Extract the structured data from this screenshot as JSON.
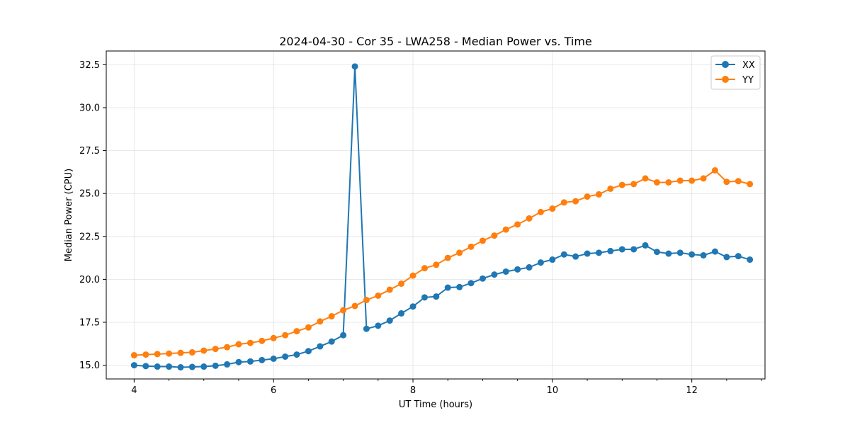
{
  "chart_data": {
    "type": "line",
    "title": "2024-04-30 - Cor 35 - LWA258 - Median Power vs. Time",
    "xlabel": "UT Time (hours)",
    "ylabel": "Median Power (CPU)",
    "xlim": [
      3.6,
      13.05
    ],
    "ylim": [
      14.2,
      33.3
    ],
    "xticks": [
      4,
      6,
      8,
      10,
      12
    ],
    "xtick_labels": [
      "4",
      "6",
      "8",
      "10",
      "12"
    ],
    "xminor_step": 0.5,
    "yticks": [
      15.0,
      17.5,
      20.0,
      22.5,
      25.0,
      27.5,
      30.0,
      32.5
    ],
    "ytick_labels": [
      "15.0",
      "17.5",
      "20.0",
      "22.5",
      "25.0",
      "27.5",
      "30.0",
      "32.5"
    ],
    "grid": true,
    "legend_position": "top-right",
    "x": [
      4.0,
      4.167,
      4.333,
      4.5,
      4.667,
      4.833,
      5.0,
      5.167,
      5.333,
      5.5,
      5.667,
      5.833,
      6.0,
      6.167,
      6.333,
      6.5,
      6.667,
      6.833,
      7.0,
      7.167,
      7.333,
      7.5,
      7.667,
      7.833,
      8.0,
      8.167,
      8.333,
      8.5,
      8.667,
      8.833,
      9.0,
      9.167,
      9.333,
      9.5,
      9.667,
      9.833,
      10.0,
      10.167,
      10.333,
      10.5,
      10.667,
      10.833,
      11.0,
      11.167,
      11.333,
      11.5,
      11.667,
      11.833,
      12.0,
      12.167,
      12.333,
      12.5,
      12.667,
      12.833
    ],
    "series": [
      {
        "name": "XX",
        "color": "#1f77b4",
        "values": [
          15.0,
          14.95,
          14.92,
          14.92,
          14.88,
          14.9,
          14.92,
          14.97,
          15.05,
          15.18,
          15.22,
          15.3,
          15.38,
          15.5,
          15.62,
          15.82,
          16.1,
          16.38,
          16.75,
          32.4,
          17.12,
          17.3,
          17.6,
          18.02,
          18.42,
          18.95,
          19.0,
          19.52,
          19.55,
          19.78,
          20.05,
          20.28,
          20.45,
          20.58,
          20.7,
          20.98,
          21.15,
          21.45,
          21.33,
          21.5,
          21.55,
          21.65,
          21.75,
          21.75,
          21.98,
          21.6,
          21.5,
          21.55,
          21.45,
          21.4,
          21.62,
          21.3,
          21.35,
          21.15
        ]
      },
      {
        "name": "YY",
        "color": "#ff7f0e",
        "values": [
          15.58,
          15.62,
          15.65,
          15.68,
          15.72,
          15.75,
          15.85,
          15.95,
          16.05,
          16.22,
          16.3,
          16.42,
          16.58,
          16.75,
          16.98,
          17.2,
          17.55,
          17.85,
          18.2,
          18.45,
          18.8,
          19.05,
          19.4,
          19.75,
          20.22,
          20.65,
          20.85,
          21.25,
          21.55,
          21.9,
          22.25,
          22.55,
          22.9,
          23.2,
          23.55,
          23.92,
          24.12,
          24.48,
          24.55,
          24.82,
          24.95,
          25.28,
          25.5,
          25.55,
          25.88,
          25.65,
          25.65,
          25.75,
          25.75,
          25.88,
          26.35,
          25.68,
          25.72,
          25.55
        ]
      }
    ]
  }
}
